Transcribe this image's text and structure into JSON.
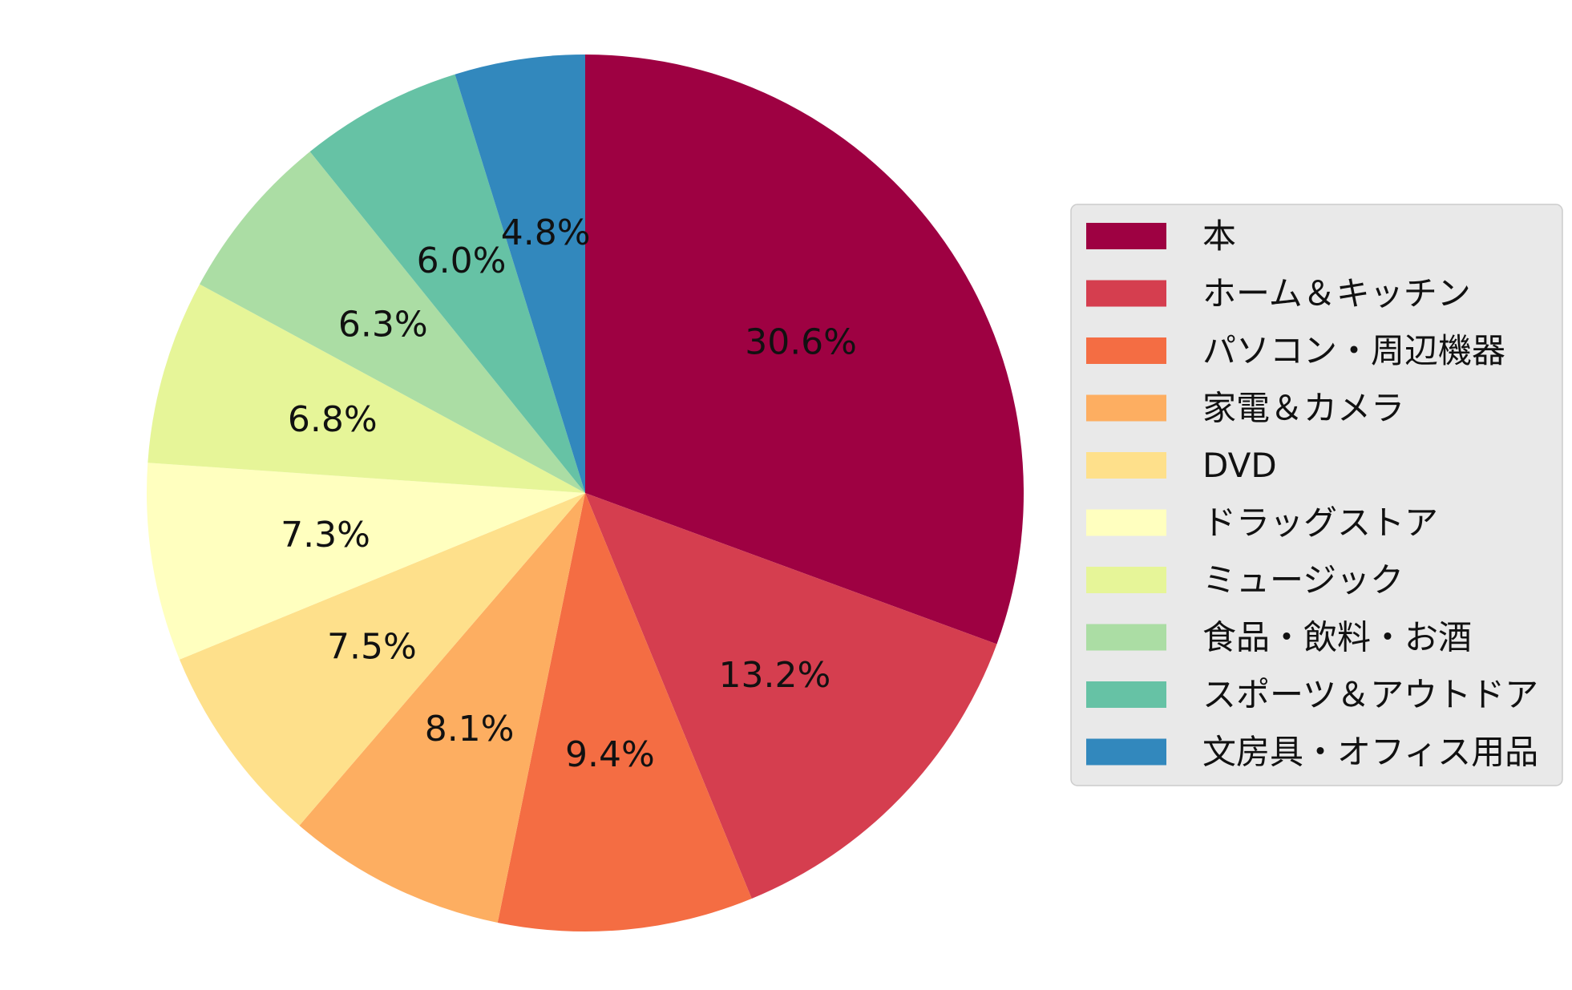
{
  "chart_data": {
    "type": "pie",
    "categories": [
      "本",
      "ホーム＆キッチン",
      "パソコン・周辺機器",
      "家電＆カメラ",
      "DVD",
      "ドラッグストア",
      "ミュージック",
      "食品・飲料・お酒",
      "スポーツ＆アウトドア",
      "文房具・オフィス用品"
    ],
    "values": [
      30.6,
      13.2,
      9.4,
      8.1,
      7.5,
      7.3,
      6.8,
      6.3,
      6.0,
      4.8
    ],
    "labels": [
      "30.6%",
      "13.2%",
      "9.4%",
      "8.1%",
      "7.5%",
      "7.3%",
      "6.8%",
      "6.3%",
      "6.0%",
      "4.8%"
    ],
    "colors": [
      "#9e0142",
      "#d53e4f",
      "#f46d43",
      "#fdae61",
      "#fee08b",
      "#ffffbf",
      "#e6f598",
      "#abdda4",
      "#66c2a5",
      "#3288bd"
    ],
    "start": "top",
    "direction": "clockwise",
    "title": "",
    "legend": "right"
  }
}
